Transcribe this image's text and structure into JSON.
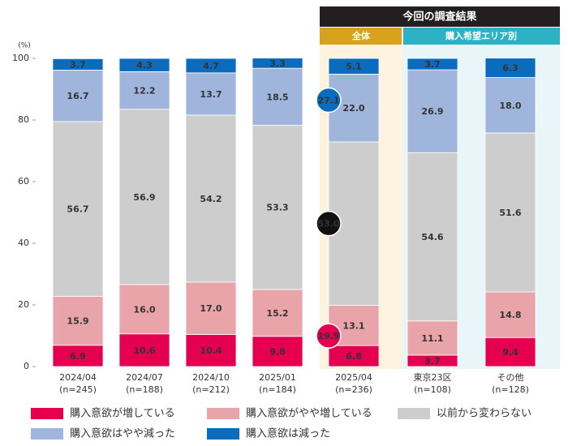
{
  "chart_data": {
    "type": "stacked_bar",
    "header": "今回の調査結果",
    "group_labels": [
      "全体",
      "購入希望エリア別"
    ],
    "y_unit": "(%)",
    "categories": [
      "2024/04",
      "2024/07",
      "2024/10",
      "2025/01",
      "2025/04",
      "東京23区",
      "その他"
    ],
    "sample_sizes": [
      "(n=245)",
      "(n=188)",
      "(n=212)",
      "(n=184)",
      "(n=236)",
      "(n=108)",
      "(n=128)"
    ],
    "ylim": [
      0,
      100
    ],
    "yticks": [
      0,
      20,
      40,
      60,
      80,
      100
    ],
    "series": [
      {
        "name": "購入意欲が増している",
        "color": "#e5004f",
        "values": [
          6.9,
          10.6,
          10.4,
          9.8,
          6.8,
          3.7,
          9.4
        ],
        "value_labels": [
          "6.9",
          "10.6",
          "10.4",
          "9.8",
          "6.8",
          "3.7",
          "9.4"
        ]
      },
      {
        "name": "購入意欲がやや増している",
        "color": "#e9a4aa",
        "values": [
          15.9,
          16.0,
          17.0,
          15.2,
          13.1,
          11.1,
          14.8
        ],
        "value_labels": [
          "15.9",
          "16.0",
          "17.0",
          "15.2",
          "13.1",
          "11.1",
          "14.8"
        ]
      },
      {
        "name": "以前から変わらない",
        "color": "#cdcdcd",
        "values": [
          56.7,
          56.9,
          54.2,
          53.3,
          53.0,
          54.6,
          51.6
        ],
        "value_labels": [
          "56.7",
          "56.9",
          "54.2",
          "53.3",
          null,
          "54.6",
          "51.6"
        ]
      },
      {
        "name": "購入意欲はやや減った",
        "color": "#9fb5dc",
        "values": [
          16.7,
          12.2,
          13.7,
          18.5,
          22.0,
          26.9,
          18.0
        ],
        "value_labels": [
          "16.7",
          "12.2",
          "13.7",
          "18.5",
          "22.0",
          "26.9",
          "18.0"
        ]
      },
      {
        "name": "購入意欲は減った",
        "color": "#0b6cbd",
        "values": [
          3.7,
          4.3,
          4.7,
          3.3,
          5.1,
          3.7,
          6.3
        ],
        "value_labels": [
          "3.7",
          "4.3",
          "4.7",
          "3.3",
          "5.1",
          "3.7",
          "6.3"
        ]
      }
    ],
    "annotations": [
      {
        "value": 19.9,
        "label": "19.9",
        "color": "#e5004f"
      },
      {
        "value": 53.0,
        "label": "53.0",
        "color": "#111111"
      },
      {
        "value": 27.1,
        "label": "27.1",
        "color": "#0b6cbd"
      }
    ]
  }
}
